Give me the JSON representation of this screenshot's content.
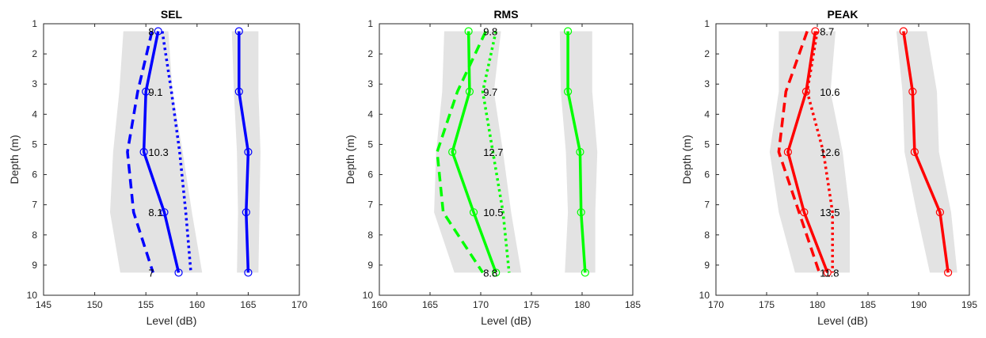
{
  "chart_data": [
    {
      "type": "line",
      "title": "SEL",
      "xlabel": "Level (dB)",
      "ylabel": "Depth (m)",
      "xlim": [
        145,
        170
      ],
      "ylim": [
        1,
        10
      ],
      "y_reversed": true,
      "xticks": [
        "145",
        "150",
        "155",
        "160",
        "165",
        "170"
      ],
      "yticks": [
        "1",
        "2",
        "3",
        "4",
        "5",
        "6",
        "7",
        "8",
        "9",
        "10"
      ],
      "color": "#0000ff",
      "depths": [
        1.25,
        3.25,
        5.25,
        7.25,
        9.25
      ],
      "shade_left": {
        "low": [
          152.8,
          152.4,
          151.8,
          151.5,
          152.5
        ],
        "high": [
          157.2,
          157.6,
          158.6,
          159.5,
          160.5
        ]
      },
      "shade_right": {
        "low": [
          163.4,
          163.6,
          163.9,
          164.0,
          163.9
        ],
        "high": [
          166.0,
          166.0,
          166.2,
          166.1,
          166.0
        ]
      },
      "series": [
        {
          "values": [
            156.2,
            155.0,
            154.8,
            156.8,
            158.2
          ],
          "style": "solid",
          "markers": true
        },
        {
          "values": [
            155.6,
            154.2,
            153.2,
            153.8,
            155.7
          ],
          "style": "dashed",
          "markers": false
        },
        {
          "values": [
            156.6,
            157.5,
            158.3,
            158.9,
            159.4
          ],
          "style": "dotted",
          "markers": false
        },
        {
          "values": [
            164.1,
            164.1,
            165.0,
            164.8,
            165.0
          ],
          "style": "solid",
          "markers": true
        }
      ],
      "spread_labels": [
        "8",
        "9.1",
        "10.3",
        "8.1",
        "7"
      ]
    },
    {
      "type": "line",
      "title": "RMS",
      "xlabel": "Level (dB)",
      "ylabel": "Depth (m)",
      "xlim": [
        160,
        185
      ],
      "ylim": [
        1,
        10
      ],
      "y_reversed": true,
      "xticks": [
        "160",
        "165",
        "170",
        "175",
        "180",
        "185"
      ],
      "yticks": [
        "1",
        "2",
        "3",
        "4",
        "5",
        "6",
        "7",
        "8",
        "9",
        "10"
      ],
      "color": "#00ff00",
      "depths": [
        1.25,
        3.25,
        5.25,
        7.25,
        9.25
      ],
      "shade_left": {
        "low": [
          166.4,
          166.2,
          165.6,
          165.4,
          167.4
        ],
        "high": [
          172.0,
          171.3,
          172.2,
          173.0,
          174.0
        ]
      },
      "shade_right": {
        "low": [
          177.8,
          177.9,
          178.4,
          178.6,
          178.3
        ],
        "high": [
          181.0,
          181.0,
          181.5,
          181.3,
          181.3
        ]
      },
      "series": [
        {
          "values": [
            168.8,
            168.9,
            167.2,
            169.3,
            171.5
          ],
          "style": "solid",
          "markers": true
        },
        {
          "values": [
            170.5,
            167.7,
            165.7,
            166.3,
            170.2
          ],
          "style": "dashed",
          "markers": false
        },
        {
          "values": [
            171.5,
            170.2,
            171.2,
            172.2,
            172.8
          ],
          "style": "dotted",
          "markers": false
        },
        {
          "values": [
            178.6,
            178.6,
            179.8,
            179.9,
            180.3
          ],
          "style": "solid",
          "markers": true
        }
      ],
      "spread_labels": [
        "9.8",
        "9.7",
        "12.7",
        "10.5",
        "8.8"
      ]
    },
    {
      "type": "line",
      "title": "PEAK",
      "xlabel": "Level (dB)",
      "ylabel": "Depth (m)",
      "xlim": [
        170,
        195
      ],
      "ylim": [
        1,
        10
      ],
      "y_reversed": true,
      "xticks": [
        "170",
        "175",
        "180",
        "185",
        "190",
        "195"
      ],
      "yticks": [
        "1",
        "2",
        "3",
        "4",
        "5",
        "6",
        "7",
        "8",
        "9",
        "10"
      ],
      "color": "#ff0000",
      "depths": [
        1.25,
        3.25,
        5.25,
        7.25,
        9.25
      ],
      "shade_left": {
        "low": [
          176.2,
          176.2,
          175.3,
          176.2,
          177.8
        ],
        "high": [
          181.8,
          181.3,
          182.5,
          183.2,
          183.2
        ]
      },
      "shade_right": {
        "low": [
          187.8,
          188.4,
          188.6,
          189.8,
          191.1
        ],
        "high": [
          190.8,
          191.8,
          192.0,
          193.2,
          193.8
        ]
      },
      "series": [
        {
          "values": [
            179.8,
            178.9,
            177.1,
            178.7,
            181.0
          ],
          "style": "solid",
          "markers": true
        },
        {
          "values": [
            179.0,
            176.9,
            176.2,
            178.2,
            180.2
          ],
          "style": "dashed",
          "markers": false
        },
        {
          "values": [
            180.0,
            179.0,
            180.6,
            181.5,
            181.5
          ],
          "style": "dotted",
          "markers": false
        },
        {
          "values": [
            188.5,
            189.4,
            189.6,
            192.1,
            192.9
          ],
          "style": "solid",
          "markers": true
        }
      ],
      "spread_labels": [
        "8.7",
        "10.6",
        "12.6",
        "13.5",
        "11.8"
      ]
    }
  ]
}
